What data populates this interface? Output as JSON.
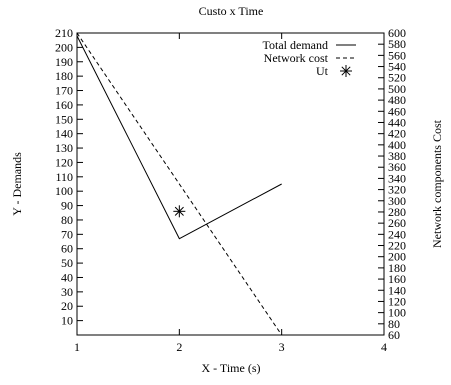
{
  "chart_data": {
    "type": "line",
    "title": "Custo x Time",
    "xlabel": "X - Time (s)",
    "ylabel": "Y - Demands",
    "y2label": "Network components Cost",
    "xlim": [
      1,
      4
    ],
    "ylim": [
      0,
      210
    ],
    "y2lim": [
      60,
      600
    ],
    "xticks": [
      1,
      2,
      3,
      4
    ],
    "yticks": [
      10,
      20,
      30,
      40,
      50,
      60,
      70,
      80,
      90,
      100,
      110,
      120,
      130,
      140,
      150,
      160,
      170,
      180,
      190,
      200,
      210
    ],
    "y2ticks": [
      60,
      80,
      100,
      120,
      140,
      160,
      180,
      200,
      220,
      240,
      260,
      280,
      300,
      320,
      340,
      360,
      380,
      400,
      420,
      440,
      460,
      480,
      500,
      520,
      540,
      560,
      580,
      600
    ],
    "grid": false,
    "legend_position": "top-right",
    "series": [
      {
        "name": "Total demand",
        "axis": "y",
        "style": "solid",
        "x": [
          1,
          2,
          3
        ],
        "y": [
          208,
          67,
          105
        ]
      },
      {
        "name": "Network cost",
        "axis": "y2",
        "style": "dashed",
        "x": [
          1,
          3
        ],
        "y": [
          600,
          60
        ]
      },
      {
        "name": "Ut",
        "axis": "y",
        "style": "star-marker",
        "x": [
          2
        ],
        "y": [
          86
        ]
      }
    ]
  }
}
